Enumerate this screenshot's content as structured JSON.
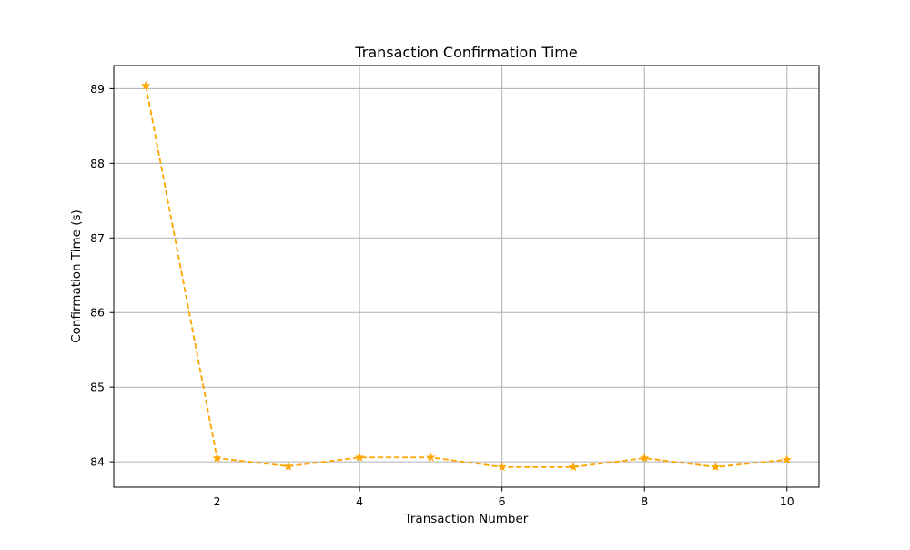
{
  "chart_data": {
    "type": "line",
    "title": "Transaction Confirmation Time",
    "xlabel": "Transaction Number",
    "ylabel": "Confirmation Time (s)",
    "x": [
      1,
      2,
      3,
      4,
      5,
      6,
      7,
      8,
      9,
      10
    ],
    "series": [
      {
        "values": [
          89.04,
          84.05,
          83.94,
          84.06,
          84.06,
          83.93,
          83.93,
          84.05,
          83.93,
          84.03
        ],
        "color": "#ffa500",
        "line_style": "dashed",
        "marker": "star"
      }
    ],
    "xlim": [
      0.55,
      10.45
    ],
    "ylim": [
      83.66,
      89.31
    ],
    "xticks": [
      2,
      4,
      6,
      8,
      10
    ],
    "yticks": [
      84,
      85,
      86,
      87,
      88,
      89
    ],
    "grid": true,
    "legend": "none"
  }
}
